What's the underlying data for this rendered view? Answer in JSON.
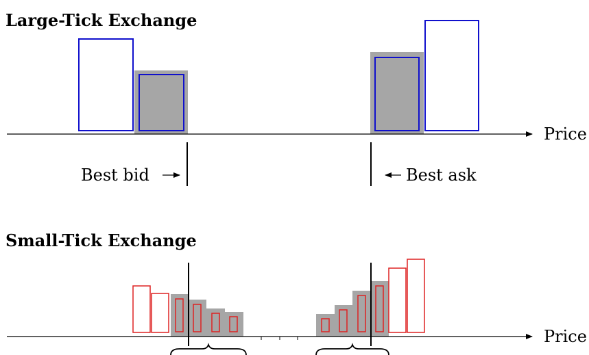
{
  "large_tick": {
    "title": "Large-Tick Exchange",
    "axis_label": "Price",
    "best_bid_label": "Best bid",
    "best_ask_label": "Best ask"
  },
  "small_tick": {
    "title": "Small-Tick Exchange",
    "axis_label": "Price"
  },
  "colors": {
    "blue_outline": "#1010cc",
    "red_outline": "#dd2222",
    "gray_fill": "#a6a6a6",
    "axis": "#000000"
  }
}
